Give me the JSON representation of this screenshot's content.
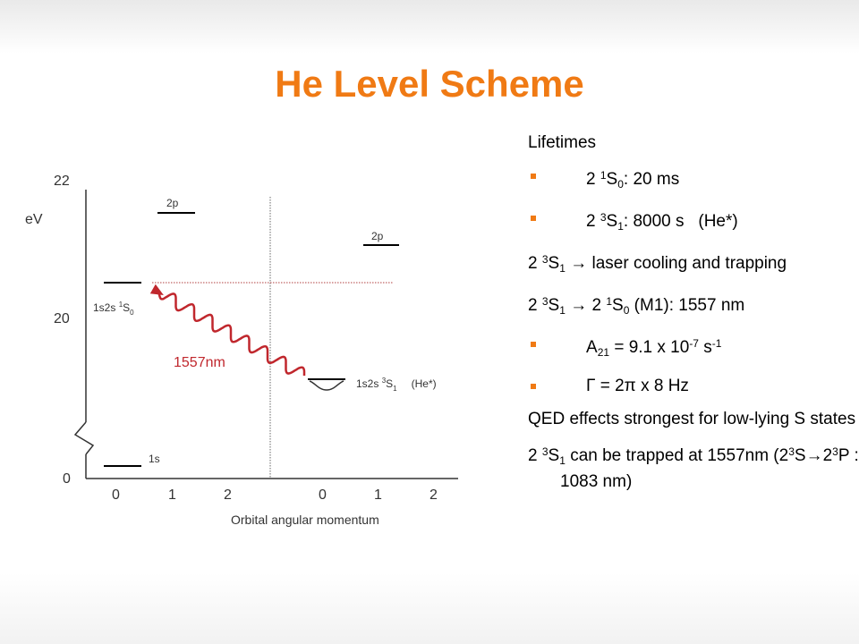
{
  "title": "He Level Scheme",
  "colors": {
    "accent": "#f07a14",
    "transition": "#c0272d",
    "lines": "#333333"
  },
  "diagram": {
    "axis_unit": "eV",
    "y_ticks": [
      "22",
      "20",
      "0"
    ],
    "x_ticks_left": [
      "0",
      "1",
      "2"
    ],
    "x_ticks_right": [
      "0",
      "1",
      "2"
    ],
    "x_axis_label": "Orbital angular momentum",
    "levels": {
      "singlet_2p": "2p",
      "triplet_2p": "2p",
      "ground": "1s",
      "singlet_1s2s": {
        "prefix": "1s2s ",
        "sup": "1",
        "base": "S",
        "sub": "0"
      },
      "triplet_1s2s": {
        "prefix": "1s2s ",
        "sup": "3",
        "base": "S",
        "sub": "1",
        "suffix": "(He*)"
      }
    },
    "transition_label": "1557nm"
  },
  "panel": {
    "heading": "Lifetimes",
    "b1": {
      "pre": "2 ",
      "sup": "1",
      "base": "S",
      "sub": "0",
      "post": ": 20 ms"
    },
    "b2": {
      "pre": "2 ",
      "sup": "3",
      "base": "S",
      "sub": "1",
      "post": ": 8000 s   (He*)"
    },
    "l3": {
      "pre": "2 ",
      "sup": "3",
      "base": "S",
      "sub": "1",
      "post": " → laser cooling and trapping"
    },
    "l4": {
      "pre": "2 ",
      "sup": "3",
      "base": "S",
      "sub": "1",
      "mid": " → 2 ",
      "sup2": "1",
      "base2": "S",
      "sub2": "0",
      "post": " (M1): 1557 nm"
    },
    "b5": {
      "pre": "A",
      "sub": "21",
      "mid": " = 9.1 x 10",
      "sup": "-7",
      "mid2": " s",
      "sup2": "-1"
    },
    "b6": "Γ = 2π x 8 Hz",
    "l7": "QED effects strongest for low-lying S states",
    "l8": {
      "pre": "2 ",
      "sup": "3",
      "base": "S",
      "sub": "1",
      "post": " can be trapped at 1557nm (2",
      "sup2": "3",
      "mid": "S→2",
      "sup3": "3",
      "post2": "P : 1083 nm)"
    }
  }
}
